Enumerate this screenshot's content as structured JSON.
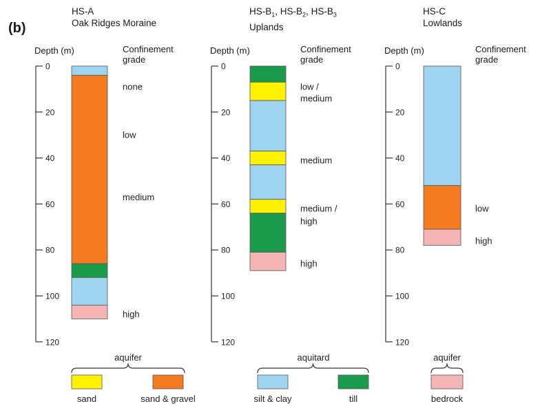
{
  "figure": {
    "panel_label": "(b)",
    "depth_header": "Depth (m)",
    "confinement_header_line1": "Confinement",
    "confinement_header_line2": "grade",
    "depth_ticks": [
      "0",
      "20",
      "40",
      "60",
      "80",
      "100",
      "120"
    ]
  },
  "columns": [
    {
      "id": "hs-a",
      "title_line1": "HS-A",
      "title_line2": "Oak Ridges Moraine",
      "layers": [
        {
          "material": "silt & clay",
          "top": 0,
          "bottom": 4
        },
        {
          "material": "sand & gravel",
          "top": 4,
          "bottom": 86
        },
        {
          "material": "till",
          "top": 86,
          "bottom": 92
        },
        {
          "material": "silt & clay",
          "top": 92,
          "bottom": 104
        },
        {
          "material": "bedrock",
          "top": 104,
          "bottom": 110
        }
      ],
      "grades": [
        {
          "text": "none",
          "depth": 9
        },
        {
          "text": "low",
          "depth": 30
        },
        {
          "text": "medium",
          "depth": 57
        },
        {
          "text": "high",
          "depth": 108
        }
      ]
    },
    {
      "id": "hs-b",
      "title_line1": "HS-B1, HS-B2, HS-B3",
      "title_line2": "Uplands",
      "layers": [
        {
          "material": "till",
          "top": 0,
          "bottom": 7
        },
        {
          "material": "sand",
          "top": 7,
          "bottom": 15
        },
        {
          "material": "silt & clay",
          "top": 15,
          "bottom": 37
        },
        {
          "material": "sand",
          "top": 37,
          "bottom": 43
        },
        {
          "material": "silt & clay",
          "top": 43,
          "bottom": 58
        },
        {
          "material": "sand",
          "top": 58,
          "bottom": 64
        },
        {
          "material": "till",
          "top": 64,
          "bottom": 81
        },
        {
          "material": "bedrock",
          "top": 81,
          "bottom": 89
        }
      ],
      "grades": [
        {
          "text": "low /",
          "depth": 9
        },
        {
          "text": "medium",
          "depth": 14
        },
        {
          "text": "medium",
          "depth": 41
        },
        {
          "text": "medium /",
          "depth": 62
        },
        {
          "text": "high",
          "depth": 67.5
        },
        {
          "text": "high",
          "depth": 86
        }
      ]
    },
    {
      "id": "hs-c",
      "title_line1": "HS-C",
      "title_line2": "Lowlands",
      "layers": [
        {
          "material": "silt & clay",
          "top": 0,
          "bottom": 52
        },
        {
          "material": "sand & gravel",
          "top": 52,
          "bottom": 71
        },
        {
          "material": "bedrock",
          "top": 71,
          "bottom": 78
        }
      ],
      "grades": [
        {
          "text": "low",
          "depth": 62
        },
        {
          "text": "high",
          "depth": 76
        }
      ]
    }
  ],
  "legend": {
    "groups": [
      {
        "label": "aquifer"
      },
      {
        "label": "aquitard"
      },
      {
        "label": "aquifer"
      }
    ],
    "items": [
      {
        "label": "sand",
        "material": "sand"
      },
      {
        "label": "sand & gravel",
        "material": "sand & gravel"
      },
      {
        "label": "silt & clay",
        "material": "silt & clay"
      },
      {
        "label": "till",
        "material": "till"
      },
      {
        "label": "bedrock",
        "material": "bedrock"
      }
    ]
  },
  "colors": {
    "sand": "#fff200",
    "sand & gravel": "#f47b20",
    "silt & clay": "#9fd4f0",
    "till": "#1a9b4b",
    "bedrock": "#f5b5b5",
    "outline": "#555555"
  }
}
